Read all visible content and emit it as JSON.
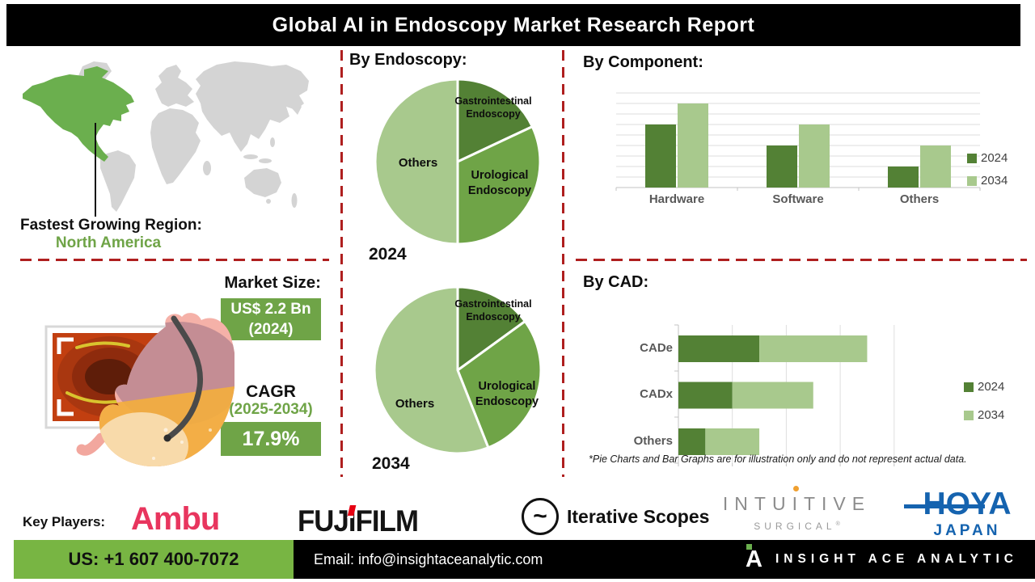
{
  "title": "Global AI in Endoscopy Market Research Report",
  "map_section": {
    "heading": "Fastest Growing Region:",
    "region": "North America"
  },
  "market_size": {
    "heading": "Market Size:",
    "value_line1": "US$ 2.2 Bn",
    "value_line2": "(2024)",
    "cagr_label": "CAGR",
    "cagr_period": "(2025-2034)",
    "cagr_value": "17.9%"
  },
  "chart_data": [
    {
      "id": "endoscopy-2024",
      "type": "pie",
      "title": "By Endoscopy:",
      "year_label": "2024",
      "slices": [
        {
          "label": "Gastrointestinal Endoscopy",
          "value": 18,
          "color": "#538135"
        },
        {
          "label": "Urological Endoscopy",
          "value": 32,
          "color": "#6FA447"
        },
        {
          "label": "Others",
          "value": 50,
          "color": "#A8C98D"
        }
      ],
      "note": "slice values are illustrative percents of circle"
    },
    {
      "id": "endoscopy-2034",
      "type": "pie",
      "year_label": "2034",
      "slices": [
        {
          "label": "Gastrointestinal Endoscopy",
          "value": 15,
          "color": "#538135"
        },
        {
          "label": "Urological Endoscopy",
          "value": 29,
          "color": "#6FA447"
        },
        {
          "label": "Others",
          "value": 56,
          "color": "#A8C98D"
        }
      ],
      "note": "slice values are illustrative percents of circle"
    },
    {
      "id": "component",
      "type": "bar",
      "title": "By Component:",
      "categories": [
        "Hardware",
        "Software",
        "Others"
      ],
      "series": [
        {
          "name": "2024",
          "color": "#538135",
          "values": [
            6,
            4,
            2
          ]
        },
        {
          "name": "2034",
          "color": "#A8C98D",
          "values": [
            8,
            6,
            4
          ]
        }
      ],
      "ylim": [
        0,
        9
      ],
      "grid": true,
      "legend_position": "right",
      "note": "axis unlabeled; values in gridline units, illustrative"
    },
    {
      "id": "cad",
      "type": "stacked-hbar",
      "title": "By CAD:",
      "categories": [
        "CADe",
        "CADx",
        "Others"
      ],
      "series": [
        {
          "name": "2024",
          "color": "#538135",
          "values": [
            1.5,
            1,
            0.5
          ]
        },
        {
          "name": "2034",
          "color": "#A8C98D",
          "values": [
            2,
            1.5,
            1
          ]
        }
      ],
      "xlim": [
        0,
        4
      ],
      "grid": true,
      "legend_position": "right",
      "note": "axis unlabeled; values in gridline units, illustrative"
    }
  ],
  "footnote": "*Pie Charts and Bar Graphs are for illustration only and do not represent actual data.",
  "key_players": {
    "label": "Key Players:",
    "ambu": {
      "name": "Ambu"
    },
    "fujifilm": {
      "name": "FUJIFILM",
      "pre": "FUJ",
      "mid": "I",
      "post": "FILM"
    },
    "iterative": {
      "name": "Iterative Scopes",
      "icon_glyph": "~"
    },
    "intuitive": {
      "line1_pre": "INTU",
      "line1_mid": "I",
      "line1_post": "TIVE",
      "line2": "SURGICAL",
      "reg_mark": "®"
    },
    "hoya": {
      "line1": "HOYA",
      "line2": "JAPAN"
    }
  },
  "footer": {
    "phone": "US: +1 607 400-7072",
    "email": "Email: info@insightaceanalytic.com",
    "brand_mark": "A",
    "brand": "INSIGHT ACE ANALYTIC"
  },
  "colors": {
    "accent_dark_green": "#538135",
    "accent_green": "#6FA447",
    "accent_light_green": "#A8C98D",
    "map_highlight_green": "#6BAF4E",
    "map_gray": "#D4D4D4",
    "dashed_red": "#AF1F1F",
    "footer_green": "#78B543",
    "hoya_blue": "#1563AF",
    "ambu_red": "#E8355E"
  }
}
